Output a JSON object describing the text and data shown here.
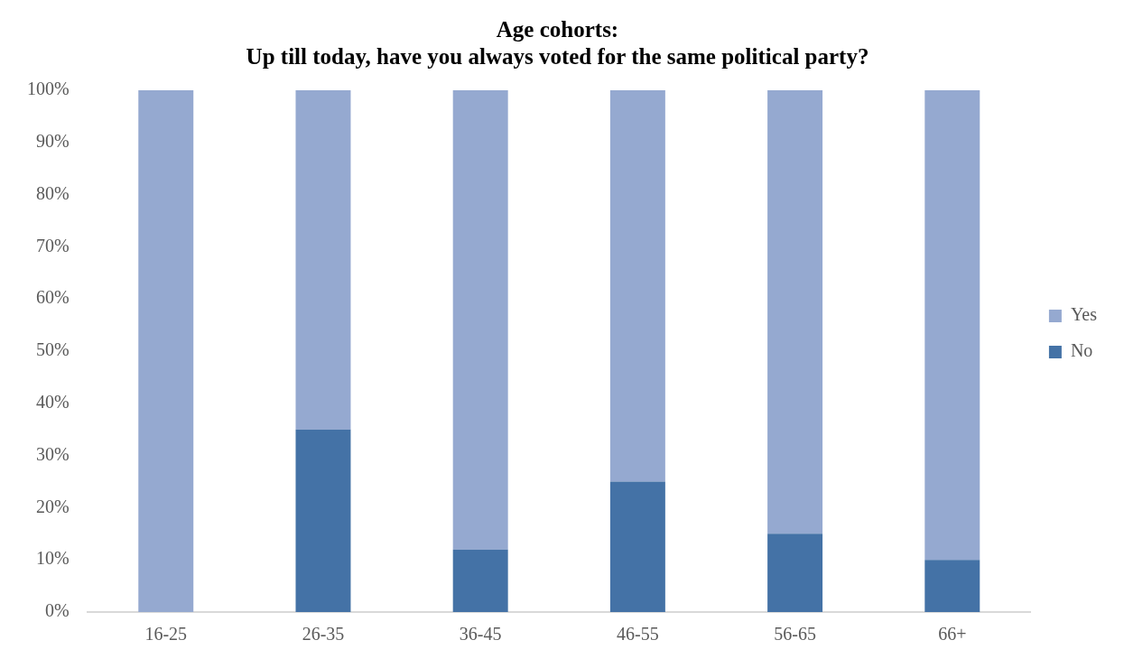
{
  "chart_data": {
    "type": "bar",
    "title": "Age cohorts:\nUp till today, have you always voted for the same political party?",
    "categories": [
      "16-25",
      "26-35",
      "36-45",
      "46-55",
      "56-65",
      "66+"
    ],
    "series": [
      {
        "name": "No",
        "color": "#4472a6",
        "values": [
          0,
          35,
          12,
          25,
          15,
          10
        ]
      },
      {
        "name": "Yes",
        "color": "#95a9d0",
        "values": [
          100,
          65,
          88,
          75,
          85,
          90
        ]
      }
    ],
    "stacked": true,
    "ylim": [
      0,
      100
    ],
    "yticks": [
      {
        "value": 0,
        "label": "0%"
      },
      {
        "value": 10,
        "label": "10%"
      },
      {
        "value": 20,
        "label": "20%"
      },
      {
        "value": 30,
        "label": "30%"
      },
      {
        "value": 40,
        "label": "40%"
      },
      {
        "value": 50,
        "label": "50%"
      },
      {
        "value": 60,
        "label": "60%"
      },
      {
        "value": 70,
        "label": "70%"
      },
      {
        "value": 80,
        "label": "80%"
      },
      {
        "value": 90,
        "label": "90%"
      },
      {
        "value": 100,
        "label": "100%"
      }
    ],
    "grid": false,
    "legend": "right"
  }
}
